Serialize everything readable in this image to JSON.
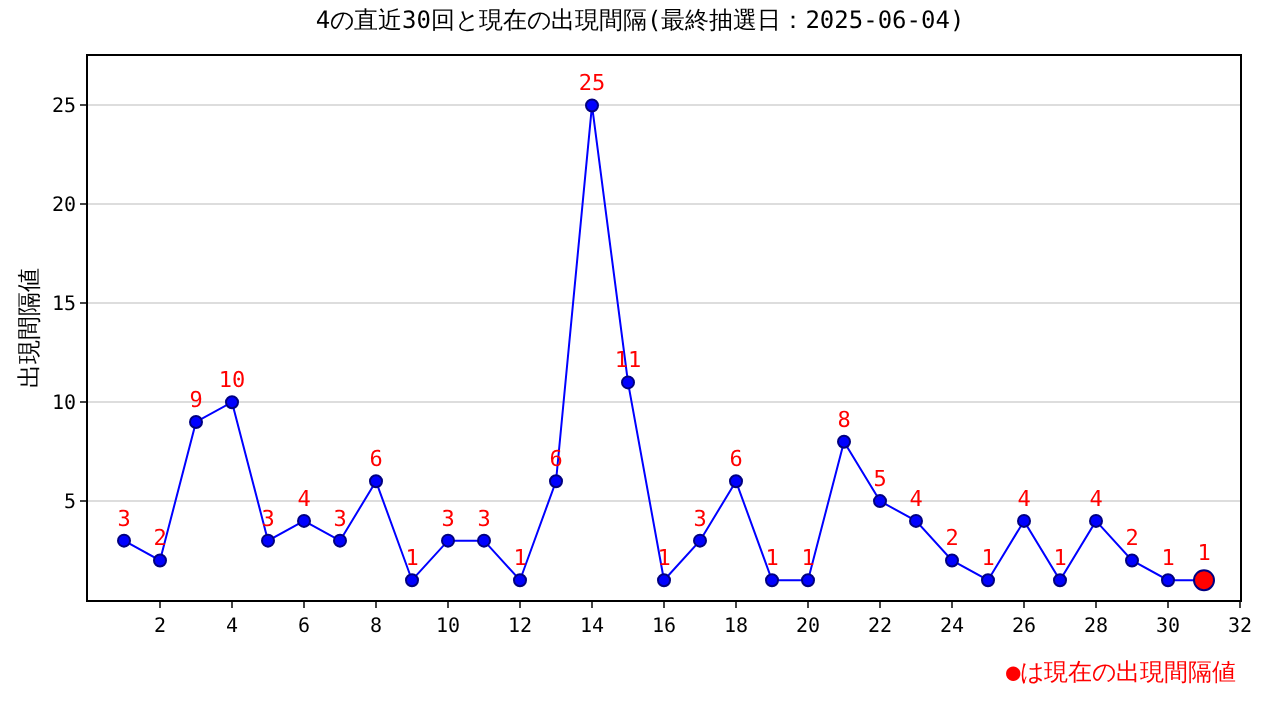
{
  "chart_data": {
    "type": "line",
    "title": "4の直近30回と現在の出現間隔(最終抽選日：2025-06-04)",
    "ylabel": "出現間隔値",
    "x": [
      1,
      2,
      3,
      4,
      5,
      6,
      7,
      8,
      9,
      10,
      11,
      12,
      13,
      14,
      15,
      16,
      17,
      18,
      19,
      20,
      21,
      22,
      23,
      24,
      25,
      26,
      27,
      28,
      29,
      30,
      31
    ],
    "series": [
      {
        "color": "#0000ff",
        "values": [
          3,
          2,
          9,
          10,
          3,
          4,
          3,
          6,
          1,
          3,
          3,
          1,
          6,
          25,
          11,
          1,
          3,
          6,
          1,
          1,
          8,
          5,
          4,
          2,
          1,
          4,
          1,
          4,
          2,
          1,
          1
        ],
        "colors": [
          "#0000ff",
          "#0000ff",
          "#0000ff",
          "#0000ff",
          "#0000ff",
          "#0000ff",
          "#0000ff",
          "#0000ff",
          "#0000ff",
          "#0000ff",
          "#0000ff",
          "#0000ff",
          "#0000ff",
          "#0000ff",
          "#0000ff",
          "#0000ff",
          "#0000ff",
          "#0000ff",
          "#0000ff",
          "#0000ff",
          "#0000ff",
          "#0000ff",
          "#0000ff",
          "#0000ff",
          "#0000ff",
          "#0000ff",
          "#0000ff",
          "#0000ff",
          "#0000ff",
          "#0000ff",
          "#ff0000"
        ]
      }
    ],
    "xlim": [
      0,
      32
    ],
    "xticks": [
      2,
      4,
      6,
      8,
      10,
      12,
      14,
      16,
      18,
      20,
      22,
      24,
      26,
      28,
      30,
      32
    ],
    "ylim": [
      0,
      27.5
    ],
    "yticks": [
      5,
      10,
      15,
      20,
      25
    ],
    "grid": "y",
    "marker": "circle",
    "line_style": "solid",
    "data_labels": true,
    "annotations": [
      "●は現在の出現間隔値"
    ]
  }
}
